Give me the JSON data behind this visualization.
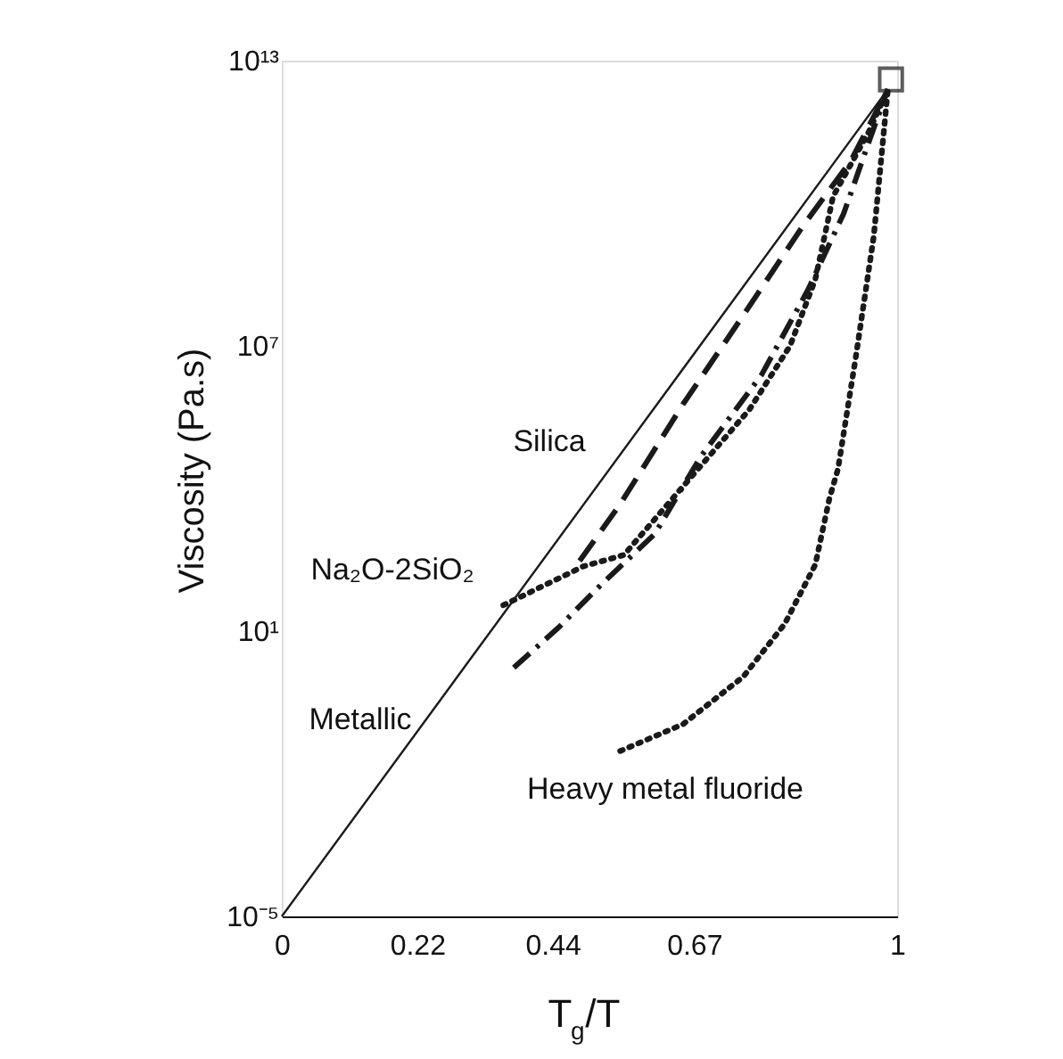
{
  "chart_data": {
    "type": "line",
    "xlabel": "T$_{g}$/T",
    "ylabel": "Viscosity (Pa.s)",
    "log": "y",
    "grid": false,
    "xlim": [
      0,
      1
    ],
    "xticks": [
      0,
      0.22,
      0.44,
      0.67,
      1
    ],
    "ylim": [
      1e-05,
      10000000000000.0
    ],
    "yticks": [
      {
        "value": 10000000000000.0,
        "label": "10¹³"
      },
      {
        "value": 10000000.0,
        "label": "10⁷"
      },
      {
        "value": 10,
        "label": "10¹"
      },
      {
        "value": 1e-05,
        "label": "10⁻⁵"
      }
    ],
    "series": [
      {
        "line_style": "solid",
        "color": "#1a1a1a",
        "x": [
          0,
          0.985
        ],
        "values": [
          1e-05,
          2500000000000.0
        ]
      },
      {
        "line_style": "dashed",
        "color": "#1a1a1a",
        "x": [
          0.484,
          0.55,
          0.652,
          0.75,
          0.846,
          0.925,
          0.985
        ],
        "values": [
          300,
          4700,
          590000.0,
          44000000.0,
          3200000000.0,
          79000000000.0,
          2500000000000.0
        ]
      },
      {
        "line_style": "dashdot",
        "color": "#1a1a1a",
        "x": [
          0.377,
          0.45,
          0.52,
          0.606,
          0.68,
          0.78,
          0.855,
          0.913,
          0.957,
          0.985
        ],
        "values": [
          1.7,
          12,
          98,
          1100,
          45000.0,
          2500000.0,
          150000000.0,
          6000000000.0,
          250000000000.0,
          2500000000000.0
        ]
      },
      {
        "line_style": "dotted",
        "color": "#1a1a1a",
        "x": [
          0.36,
          0.49,
          0.556,
          0.76,
          0.826,
          0.867,
          0.896,
          0.954,
          0.985
        ],
        "values": [
          35,
          230,
          400,
          460000.0,
          10000000.0,
          250000000.0,
          14000000000.0,
          320000000000.0,
          2500000000000.0
        ]
      },
      {
        "line_style": "dotted",
        "color": "#1a1a1a",
        "x": [
          0.55,
          0.652,
          0.75,
          0.817,
          0.867,
          0.89,
          0.904,
          0.933,
          0.962,
          0.985
        ],
        "values": [
          0.03,
          0.11,
          1.1,
          14,
          250,
          6200,
          26000.0,
          6000000.0,
          2000000000.0,
          2500000000000.0
        ]
      },
      {
        "type": "scatter",
        "marker": "square",
        "color": "#1a1a1a",
        "x": [
          0.99
        ],
        "values": [
          4000000000000.0
        ]
      }
    ],
    "annotations": [
      "Silica",
      "Na₂O-2SiO₂",
      "Metallic",
      "Heavy metal fluoride"
    ]
  }
}
